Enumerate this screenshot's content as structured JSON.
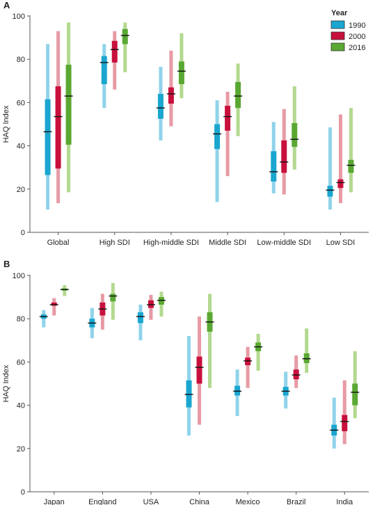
{
  "legend": {
    "title": "Year",
    "items": [
      {
        "label": "1990",
        "color": "#1aa6cf",
        "light": "#8fd3ea"
      },
      {
        "label": "2000",
        "color": "#c8103c",
        "light": "#e79aa5"
      },
      {
        "label": "2016",
        "color": "#5aa833",
        "light": "#b3d98f"
      }
    ]
  },
  "chart_data": [
    {
      "panel": "A",
      "type": "range",
      "ylabel": "HAQ Index",
      "ylim": [
        0,
        100
      ],
      "yticks": [
        0,
        20,
        40,
        60,
        80,
        100
      ],
      "categories": [
        "Global",
        "High SDI",
        "High-middle SDI",
        "Middle SDI",
        "Low-middle SDI",
        "Low SDI"
      ],
      "series": [
        {
          "name": "1990",
          "values": [
            46.5,
            78.5,
            57.5,
            45.5,
            28.0,
            19.5
          ],
          "iqr_low": [
            26.5,
            68.5,
            52.5,
            38.5,
            23.5,
            16.5
          ],
          "iqr_high": [
            61.5,
            81.5,
            64.0,
            50.0,
            37.5,
            21.5
          ],
          "range_low": [
            10.5,
            57.5,
            42.5,
            14.0,
            18.0,
            10.5
          ],
          "range_high": [
            87.0,
            87.0,
            76.5,
            61.0,
            51.0,
            48.5
          ]
        },
        {
          "name": "2000",
          "values": [
            53.5,
            84.5,
            64.0,
            53.5,
            32.5,
            23.0
          ],
          "iqr_low": [
            29.5,
            78.5,
            59.5,
            47.0,
            27.5,
            20.5
          ],
          "iqr_high": [
            67.5,
            88.5,
            67.0,
            58.5,
            42.5,
            24.5
          ],
          "range_low": [
            13.5,
            66.0,
            49.0,
            26.0,
            17.5,
            13.5
          ],
          "range_high": [
            93.0,
            93.0,
            84.0,
            65.0,
            57.0,
            54.5
          ]
        },
        {
          "name": "2016",
          "values": [
            63.0,
            91.0,
            74.5,
            63.0,
            43.0,
            31.0
          ],
          "iqr_low": [
            40.5,
            87.0,
            68.5,
            57.5,
            39.5,
            27.5
          ],
          "iqr_high": [
            77.5,
            94.0,
            79.0,
            69.5,
            50.5,
            33.5
          ],
          "range_low": [
            18.5,
            74.0,
            62.0,
            44.5,
            29.0,
            18.5
          ],
          "range_high": [
            97.0,
            97.0,
            92.0,
            78.0,
            67.5,
            57.5
          ]
        }
      ]
    },
    {
      "panel": "B",
      "type": "range",
      "ylabel": "HAQ Index",
      "ylim": [
        0,
        100
      ],
      "yticks": [
        0,
        20,
        40,
        60,
        80,
        100
      ],
      "categories": [
        "Japan",
        "England",
        "USA",
        "China",
        "Mexico",
        "Brazil",
        "India"
      ],
      "series": [
        {
          "name": "1990",
          "values": [
            81.0,
            78.0,
            81.0,
            45.0,
            46.5,
            46.5,
            28.5
          ],
          "iqr_low": [
            80.0,
            76.0,
            78.0,
            39.0,
            44.5,
            44.5,
            26.0
          ],
          "iqr_high": [
            82.0,
            80.0,
            83.0,
            51.5,
            49.0,
            48.5,
            31.0
          ],
          "range_low": [
            76.0,
            71.0,
            70.0,
            26.0,
            35.0,
            38.5,
            20.0
          ],
          "range_high": [
            84.0,
            85.0,
            86.5,
            72.0,
            56.5,
            55.5,
            43.5
          ]
        },
        {
          "name": "2000",
          "values": [
            86.5,
            84.5,
            86.5,
            57.5,
            60.5,
            54.0,
            32.5
          ],
          "iqr_low": [
            86.0,
            81.5,
            85.0,
            50.0,
            58.5,
            52.0,
            28.0
          ],
          "iqr_high": [
            87.5,
            87.5,
            88.5,
            62.5,
            62.0,
            56.5,
            35.5
          ],
          "range_low": [
            81.5,
            75.0,
            79.5,
            31.0,
            48.0,
            48.0,
            22.0
          ],
          "range_high": [
            89.5,
            91.5,
            91.0,
            81.0,
            67.0,
            63.0,
            51.5
          ]
        },
        {
          "name": "2016",
          "values": [
            93.5,
            90.5,
            88.5,
            78.5,
            67.0,
            61.5,
            46.0
          ],
          "iqr_low": [
            93.0,
            88.0,
            86.5,
            74.0,
            65.0,
            59.5,
            40.0
          ],
          "iqr_high": [
            94.0,
            91.5,
            90.0,
            83.0,
            69.0,
            64.0,
            50.0
          ],
          "range_low": [
            90.5,
            79.5,
            81.0,
            48.0,
            56.0,
            55.0,
            34.0
          ],
          "range_high": [
            95.5,
            96.5,
            92.5,
            91.5,
            73.0,
            75.5,
            65.0
          ]
        }
      ]
    }
  ]
}
